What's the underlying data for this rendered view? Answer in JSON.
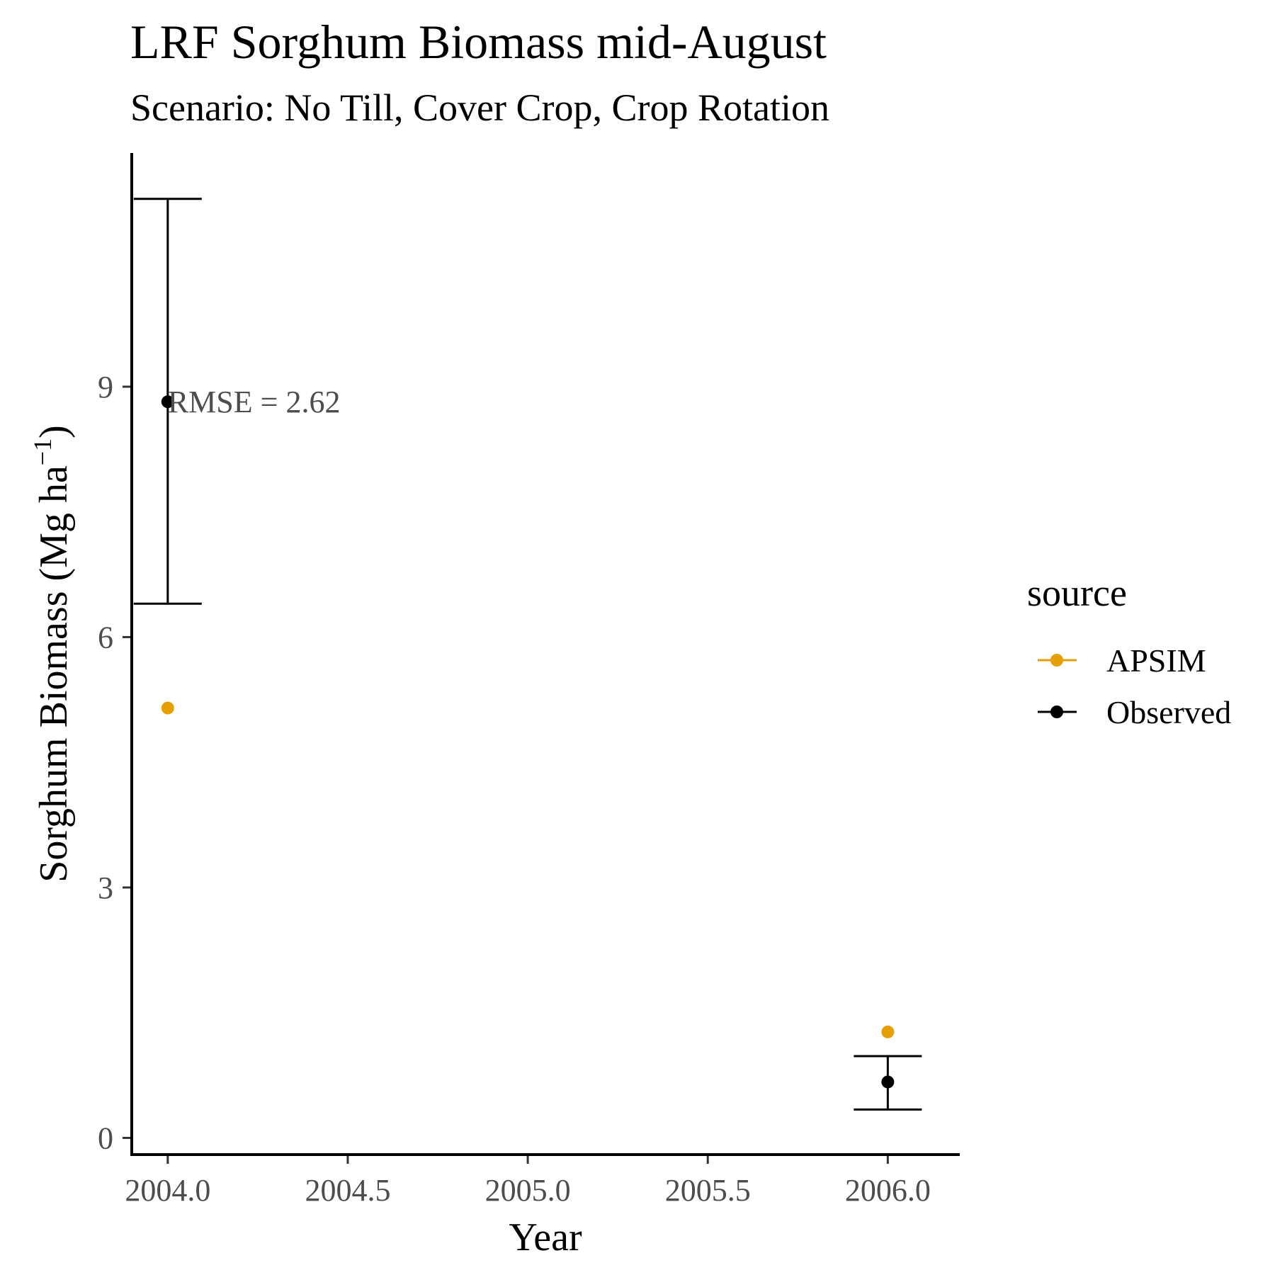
{
  "chart_data": {
    "type": "scatter",
    "title": "LRF Sorghum Biomass mid-August",
    "subtitle": "Scenario: No Till, Cover Crop, Crop Rotation",
    "xlabel": "Year",
    "ylabel_main": "Sorghum Biomass (Mg ha",
    "ylabel_sup": "−1",
    "ylabel_close": ")",
    "xlim": [
      2003.9,
      2006.2
    ],
    "ylim": [
      -0.2,
      11.8
    ],
    "x_ticks": [
      2004.0,
      2004.5,
      2005.0,
      2005.5,
      2006.0
    ],
    "x_tick_labels": [
      "2004.0",
      "2004.5",
      "2005.0",
      "2005.5",
      "2006.0"
    ],
    "y_ticks": [
      0,
      3,
      6,
      9
    ],
    "y_tick_labels": [
      "0",
      "3",
      "6",
      "9"
    ],
    "grid": false,
    "legend": {
      "title": "source",
      "position": "right",
      "entries": [
        {
          "label": "APSIM",
          "color": "#E69F00"
        },
        {
          "label": "Observed",
          "color": "#000000"
        }
      ]
    },
    "series": [
      {
        "name": "APSIM",
        "color": "#E69F00",
        "points": [
          {
            "x": 2004.0,
            "y": 5.15
          },
          {
            "x": 2006.0,
            "y": 1.27
          }
        ]
      },
      {
        "name": "Observed",
        "color": "#000000",
        "points": [
          {
            "x": 2004.0,
            "y": 8.82,
            "ymin": 6.4,
            "ymax": 11.25
          },
          {
            "x": 2006.0,
            "y": 0.67,
            "ymin": 0.34,
            "ymax": 0.98
          }
        ]
      }
    ],
    "annotations": [
      {
        "text": "RMSE = 2.62",
        "x": 2004.0,
        "y": 8.82
      }
    ]
  }
}
